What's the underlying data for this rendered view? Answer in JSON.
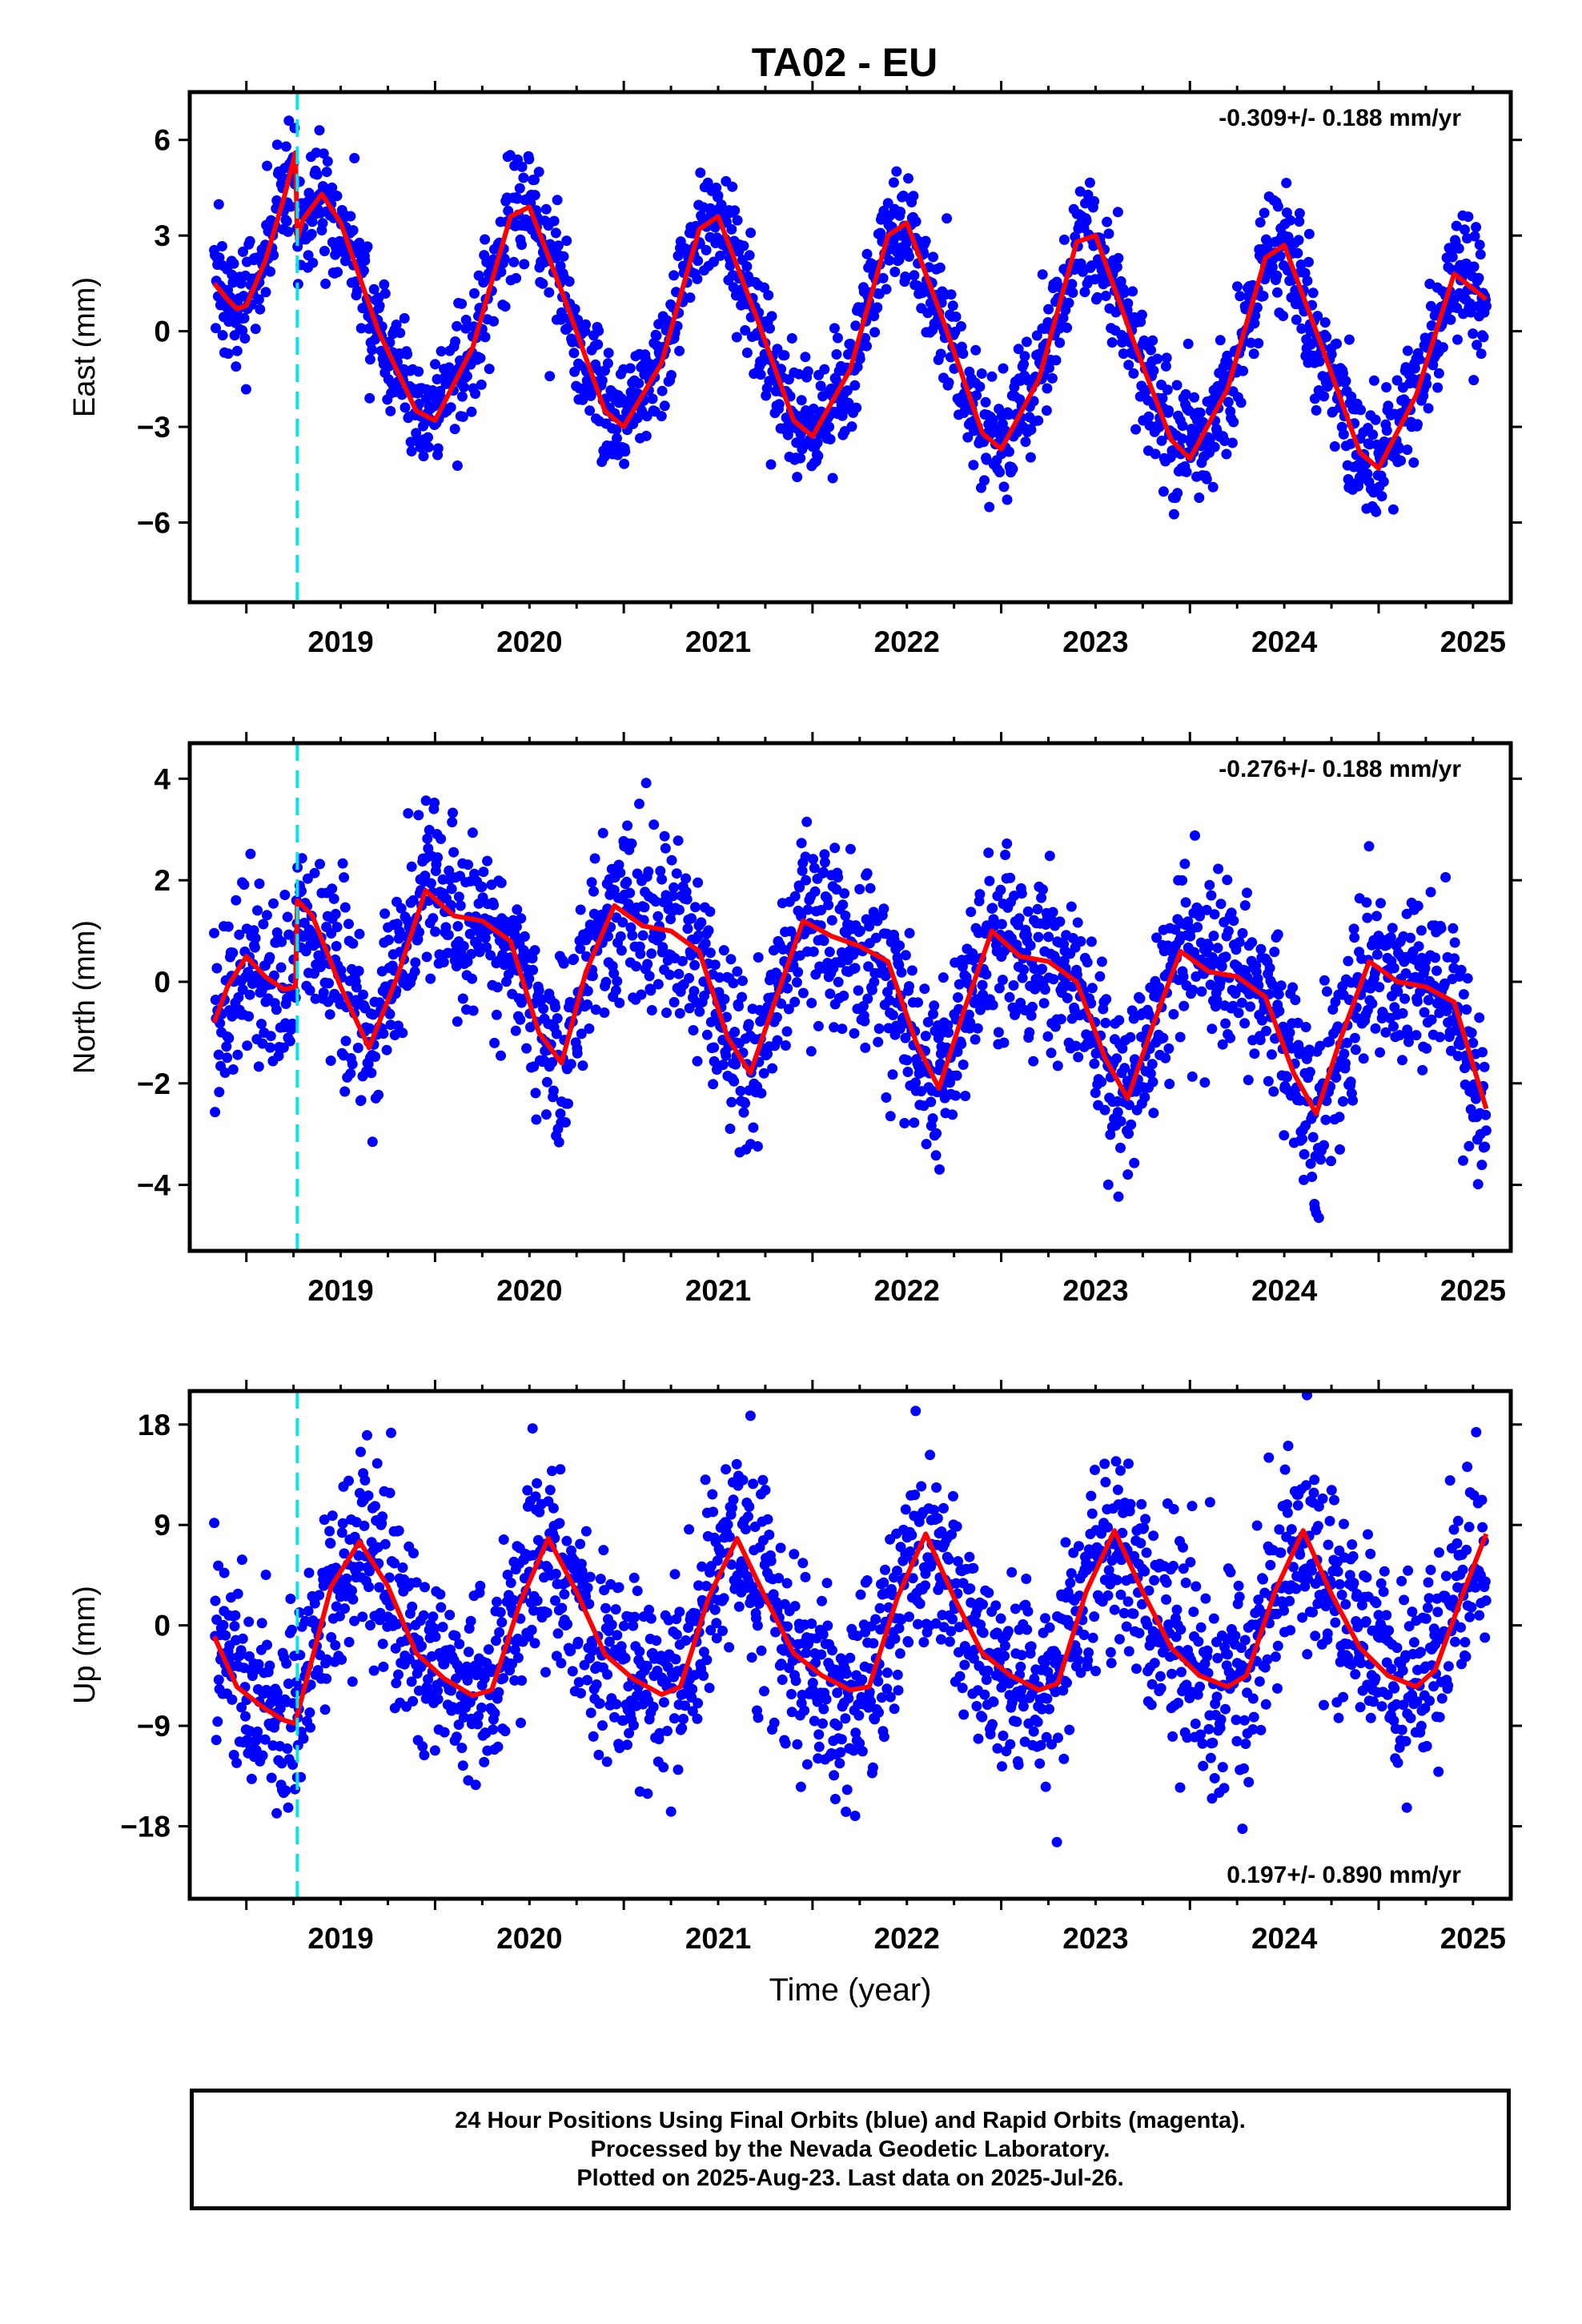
{
  "title": "TA02 - EU",
  "colors": {
    "points": "#0000ff",
    "fit": "#ff0000",
    "event_line": "#00e5ee",
    "frame": "#000000"
  },
  "chart_data": [
    {
      "type": "scatter",
      "component": "East",
      "ylabel": "East (mm)",
      "xlabel": "",
      "xlim": [
        2018.7,
        2025.7
      ],
      "ylim": [
        -8.5,
        7.5
      ],
      "yticks": [
        -6,
        -3,
        0,
        3,
        6
      ],
      "ytick_labels": [
        "−6",
        "−3",
        "0",
        "3",
        "6"
      ],
      "xticks": [
        2019,
        2020,
        2021,
        2022,
        2023,
        2024,
        2025
      ],
      "rate_text": "-0.309+/- 0.188 mm/yr",
      "event_year": 2019.27,
      "fit_curve": {
        "x": [
          2018.83,
          2018.9,
          2018.95,
          2019.0,
          2019.1,
          2019.2,
          2019.26,
          2019.27,
          2019.3,
          2019.4,
          2019.5,
          2019.7,
          2019.9,
          2020.0,
          2020.2,
          2020.4,
          2020.5,
          2020.7,
          2020.9,
          2021.0,
          2021.2,
          2021.4,
          2021.5,
          2021.7,
          2021.9,
          2022.0,
          2022.2,
          2022.4,
          2022.5,
          2022.7,
          2022.9,
          2023.0,
          2023.2,
          2023.4,
          2023.5,
          2023.7,
          2023.9,
          2024.0,
          2024.2,
          2024.4,
          2024.5,
          2024.7,
          2024.9,
          2025.0,
          2025.2,
          2025.4,
          2025.57
        ],
        "y": [
          1.5,
          1.0,
          0.7,
          0.8,
          2.2,
          4.2,
          5.6,
          2.9,
          3.5,
          4.3,
          3.4,
          0.0,
          -2.5,
          -2.8,
          -0.5,
          3.6,
          3.9,
          0.8,
          -2.5,
          -3.0,
          -1.0,
          3.2,
          3.6,
          0.5,
          -2.8,
          -3.3,
          -1.2,
          3.0,
          3.4,
          0.2,
          -3.2,
          -3.7,
          -1.5,
          2.8,
          3.0,
          -0.3,
          -3.4,
          -4.0,
          -1.8,
          2.3,
          2.7,
          -0.5,
          -3.8,
          -4.3,
          -2.0,
          1.8,
          1.0
        ]
      },
      "points": {
        "x_start": 2018.83,
        "x_end": 2025.57,
        "count": 2000,
        "residual_sd": 0.95
      }
    },
    {
      "type": "scatter",
      "component": "North",
      "ylabel": "North (mm)",
      "xlabel": "",
      "xlim": [
        2018.7,
        2025.7
      ],
      "ylim": [
        -5.3,
        4.7
      ],
      "yticks": [
        -4,
        -2,
        0,
        2,
        4
      ],
      "ytick_labels": [
        "−4",
        "−2",
        "0",
        "2",
        "4"
      ],
      "xticks": [
        2019,
        2020,
        2021,
        2022,
        2023,
        2024,
        2025
      ],
      "rate_text": "-0.276+/- 0.188 mm/yr",
      "event_year": 2019.27,
      "fit_curve": {
        "x": [
          2018.83,
          2018.9,
          2019.0,
          2019.1,
          2019.2,
          2019.26,
          2019.27,
          2019.35,
          2019.5,
          2019.65,
          2019.8,
          2019.95,
          2020.1,
          2020.25,
          2020.4,
          2020.55,
          2020.67,
          2020.8,
          2020.95,
          2021.1,
          2021.25,
          2021.4,
          2021.55,
          2021.67,
          2021.8,
          2021.95,
          2022.1,
          2022.25,
          2022.4,
          2022.55,
          2022.67,
          2022.8,
          2022.95,
          2023.1,
          2023.25,
          2023.4,
          2023.55,
          2023.67,
          2023.8,
          2023.95,
          2024.1,
          2024.25,
          2024.4,
          2024.55,
          2024.67,
          2024.8,
          2024.95,
          2025.1,
          2025.25,
          2025.4,
          2025.57
        ],
        "y": [
          -0.8,
          -0.1,
          0.5,
          0.1,
          -0.15,
          -0.1,
          1.6,
          1.3,
          -0.1,
          -1.3,
          0.1,
          1.8,
          1.3,
          1.2,
          0.8,
          -1.0,
          -1.6,
          0.2,
          1.5,
          1.1,
          1.0,
          0.6,
          -1.1,
          -1.8,
          -0.4,
          1.2,
          0.9,
          0.7,
          0.4,
          -1.2,
          -2.1,
          -0.6,
          1.0,
          0.5,
          0.4,
          0.0,
          -1.5,
          -2.3,
          -0.9,
          0.6,
          0.2,
          0.1,
          -0.3,
          -1.8,
          -2.6,
          -1.1,
          0.4,
          0.0,
          -0.1,
          -0.4,
          -2.5
        ]
      },
      "points": {
        "x_start": 2018.83,
        "x_end": 2025.57,
        "count": 2000,
        "residual_sd": 0.85
      }
    },
    {
      "type": "scatter",
      "component": "Up",
      "ylabel": "Up (mm)",
      "xlabel": "Time (year)",
      "xlim": [
        2018.7,
        2025.7
      ],
      "ylim": [
        -24.5,
        21.0
      ],
      "yticks": [
        -18,
        -9,
        0,
        9,
        18
      ],
      "ytick_labels": [
        "−18",
        "−9",
        "0",
        "9",
        "18"
      ],
      "xticks": [
        2019,
        2020,
        2021,
        2022,
        2023,
        2024,
        2025
      ],
      "rate_text": "0.197+/- 0.890 mm/yr",
      "event_year": 2019.27,
      "fit_curve": {
        "x": [
          2018.83,
          2018.95,
          2019.1,
          2019.2,
          2019.26,
          2019.27,
          2019.45,
          2019.6,
          2019.75,
          2019.9,
          2020.05,
          2020.2,
          2020.3,
          2020.45,
          2020.6,
          2020.75,
          2020.9,
          2021.05,
          2021.2,
          2021.3,
          2021.45,
          2021.6,
          2021.75,
          2021.9,
          2022.05,
          2022.2,
          2022.3,
          2022.45,
          2022.6,
          2022.75,
          2022.9,
          2023.05,
          2023.2,
          2023.3,
          2023.45,
          2023.6,
          2023.75,
          2023.9,
          2024.05,
          2024.2,
          2024.3,
          2024.45,
          2024.6,
          2024.75,
          2024.9,
          2025.05,
          2025.2,
          2025.3,
          2025.45,
          2025.57
        ],
        "y": [
          -1.0,
          -5.5,
          -7.5,
          -8.5,
          -8.8,
          -8.0,
          3.5,
          7.5,
          3.5,
          -2.5,
          -4.8,
          -6.3,
          -5.8,
          2.0,
          7.8,
          3.0,
          -2.6,
          -4.8,
          -6.2,
          -5.5,
          2.5,
          7.8,
          2.5,
          -2.5,
          -4.5,
          -5.8,
          -5.5,
          2.5,
          8.2,
          2.5,
          -2.5,
          -4.5,
          -5.8,
          -5.2,
          3.0,
          8.5,
          3.0,
          -2.0,
          -4.5,
          -5.5,
          -4.5,
          3.0,
          8.5,
          2.8,
          -2.0,
          -4.5,
          -5.5,
          -4.0,
          3.0,
          8.2
        ]
      },
      "points": {
        "x_start": 2018.83,
        "x_end": 2025.57,
        "count": 2000,
        "residual_sd": 4.6
      }
    }
  ],
  "caption": {
    "line1": "24 Hour Positions Using Final Orbits (blue) and Rapid Orbits (magenta).",
    "line2": "Processed by the Nevada Geodetic Laboratory.",
    "line3": "Plotted on 2025-Aug-23. Last data on 2025-Jul-26."
  }
}
